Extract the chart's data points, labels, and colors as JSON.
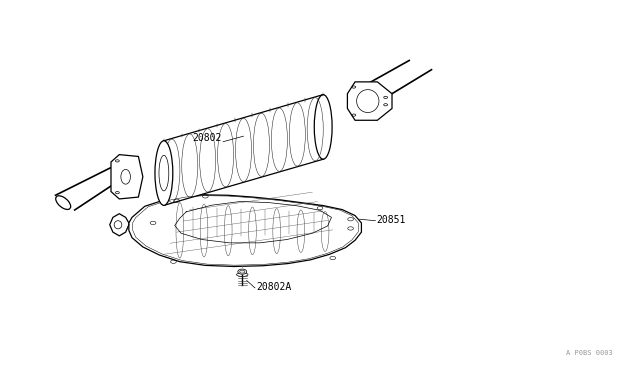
{
  "bg_color": "#ffffff",
  "line_color": "#000000",
  "label_color": "#000000",
  "fig_width": 6.4,
  "fig_height": 3.72,
  "dpi": 100,
  "watermark": "A P0BS 0003",
  "lw_main": 0.9,
  "lw_thin": 0.5,
  "lw_thick": 1.2,
  "label_fontsize": 7
}
